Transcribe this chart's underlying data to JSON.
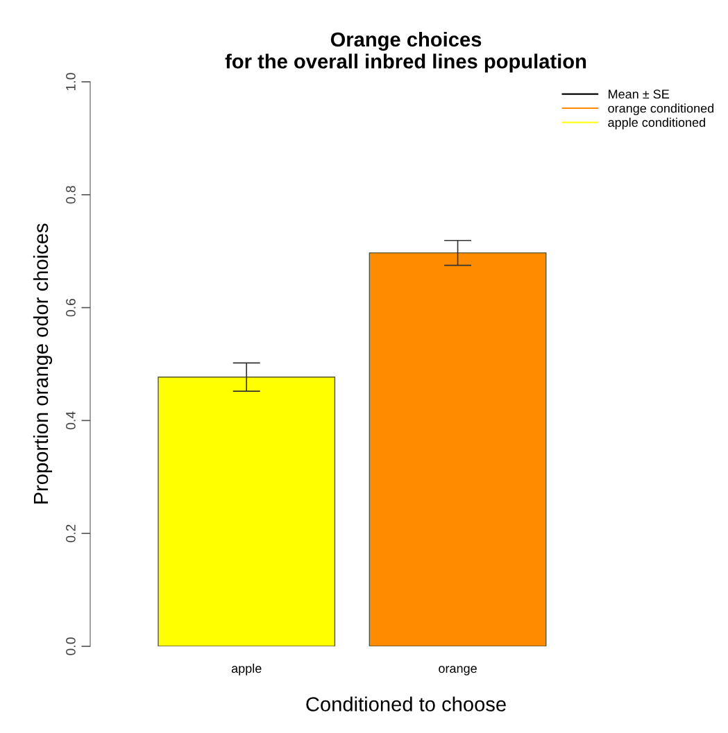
{
  "chart_data": {
    "type": "bar",
    "title": "Orange choices\nfor the overall inbred lines population",
    "xlabel": "Conditioned to choose",
    "ylabel": "Proportion orange odor choices",
    "categories": [
      "apple",
      "orange"
    ],
    "series": [
      {
        "name": "orange conditioned",
        "color": "#ff8c00",
        "values": [
          null,
          0.697
        ],
        "errors": [
          null,
          0.022
        ]
      },
      {
        "name": "apple conditioned",
        "color": "#ffff00",
        "values": [
          0.477,
          null
        ],
        "errors": [
          0.025,
          null
        ]
      }
    ],
    "annotations": [
      "Mean ± SE"
    ],
    "ylim": [
      0,
      1
    ],
    "yticks": [
      {
        "value": 0,
        "label": "0.0"
      },
      0.2,
      0.4,
      0.6,
      0.8,
      {
        "value": 1,
        "label": "1.0"
      }
    ],
    "grid": false,
    "legend": "top right"
  }
}
